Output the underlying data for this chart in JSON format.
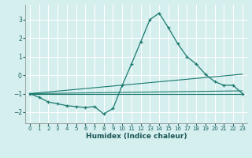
{
  "xlabel": "Humidex (Indice chaleur)",
  "background_color": "#d5eeee",
  "grid_color": "#ffffff",
  "line_color": "#1a7a6e",
  "xlim": [
    -0.5,
    23.5
  ],
  "ylim": [
    -2.6,
    3.8
  ],
  "yticks": [
    -2,
    -1,
    0,
    1,
    2,
    3
  ],
  "xticks": [
    0,
    1,
    2,
    3,
    4,
    5,
    6,
    7,
    8,
    9,
    10,
    11,
    12,
    13,
    14,
    15,
    16,
    17,
    18,
    19,
    20,
    21,
    22,
    23
  ],
  "series1_x": [
    0,
    1,
    2,
    3,
    4,
    5,
    6,
    7,
    8,
    9,
    10,
    11,
    12,
    13,
    14,
    15,
    16,
    17,
    18,
    19,
    20,
    21,
    22,
    23
  ],
  "series1_y": [
    -1.0,
    -1.2,
    -1.45,
    -1.55,
    -1.65,
    -1.7,
    -1.75,
    -1.7,
    -2.1,
    -1.8,
    -0.55,
    0.6,
    1.8,
    3.0,
    3.35,
    2.55,
    1.7,
    1.0,
    0.6,
    0.05,
    -0.35,
    -0.55,
    -0.55,
    -1.0
  ],
  "line2_x": [
    0,
    23
  ],
  "line2_y": [
    -1.0,
    -1.0
  ],
  "line3_x": [
    0,
    23
  ],
  "line3_y": [
    -1.0,
    -0.85
  ],
  "line4_x": [
    0,
    23
  ],
  "line4_y": [
    -1.0,
    0.05
  ]
}
